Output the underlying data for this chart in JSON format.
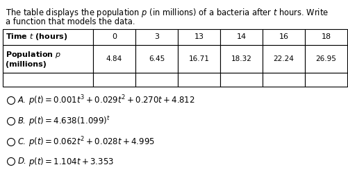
{
  "desc_line1": "The table displays the population $p$ (in millions) of a bacteria after $t$ hours. Write",
  "desc_line2": "a function that models the data.",
  "table_headers": [
    "0",
    "3",
    "13",
    "14",
    "16",
    "18"
  ],
  "table_col0_header": "Time $t$ (hours)",
  "table_col0_row": "Population $p$\n(millions)",
  "table_values": [
    "4.84",
    "6.45",
    "16.71",
    "18.32",
    "22.24",
    "26.95"
  ],
  "option_letters": [
    "A.",
    "B.",
    "C.",
    "D."
  ],
  "option_texts": [
    "$p(t) = 0.001t^3+0.029t^2+0.270t+4.812$",
    "$p(t) = 4.638(1.099)^t$",
    "$p(t) = 0.062t^2+0.028t+4.995$",
    "$p(t) = 1.104t+3.353$"
  ],
  "white": "#ffffff",
  "black": "#000000",
  "light_gray": "#e8e8e8",
  "desc_fontsize": 8.3,
  "table_fontsize": 8.0,
  "option_fontsize": 8.5,
  "fig_width": 5.02,
  "fig_height": 2.77,
  "dpi": 100
}
